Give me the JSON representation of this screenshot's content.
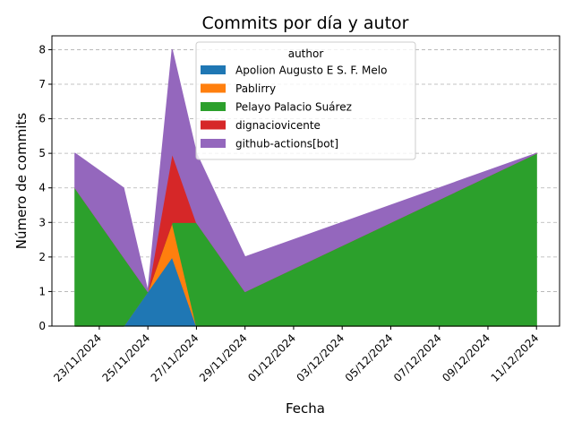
{
  "chart_data": {
    "type": "area",
    "stacked": true,
    "title": "Commits por día y autor",
    "xlabel": "Fecha",
    "ylabel": "Número de commits",
    "ylim": [
      0,
      8.4
    ],
    "yticks": [
      0,
      1,
      2,
      3,
      4,
      5,
      6,
      7,
      8
    ],
    "grid": "y-dashed",
    "legend_title": "author",
    "legend_position": "top-center",
    "x": [
      "22/11/2024",
      "24/11/2024",
      "25/11/2024",
      "26/11/2024",
      "27/11/2024",
      "29/11/2024",
      "11/12/2024"
    ],
    "x_ticks": [
      "23/11/2024",
      "25/11/2024",
      "27/11/2024",
      "29/11/2024",
      "01/12/2024",
      "03/12/2024",
      "05/12/2024",
      "07/12/2024",
      "09/12/2024",
      "11/12/2024"
    ],
    "series": [
      {
        "name": "Apolion Augusto E S. F. Melo",
        "color": "#1f77b4",
        "values": [
          0,
          0,
          1,
          2,
          0,
          0,
          0
        ]
      },
      {
        "name": "Pablirry",
        "color": "#ff7f0e",
        "values": [
          0,
          0,
          0,
          1,
          0,
          0,
          0
        ]
      },
      {
        "name": "Pelayo Palacio Suárez",
        "color": "#2ca02c",
        "values": [
          4,
          2,
          0,
          0,
          3,
          1,
          5
        ]
      },
      {
        "name": "dignaciovicente",
        "color": "#d62728",
        "values": [
          0,
          0,
          0,
          2,
          0,
          0,
          0
        ]
      },
      {
        "name": "github-actions[bot]",
        "color": "#9467bd",
        "values": [
          1,
          2,
          0,
          3,
          2,
          1,
          0
        ]
      }
    ]
  }
}
